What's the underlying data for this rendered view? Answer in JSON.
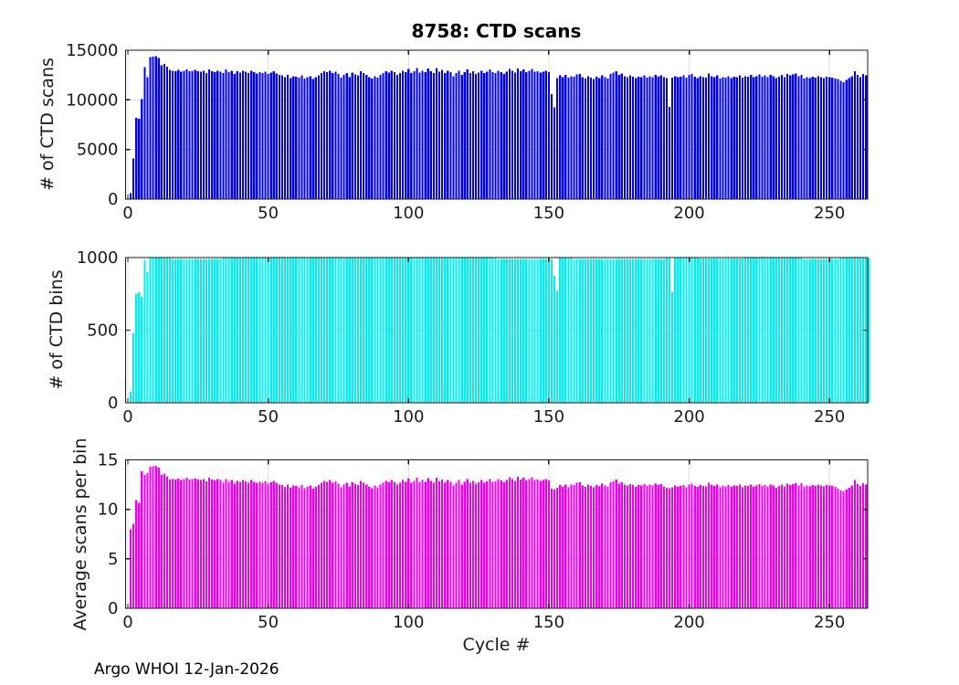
{
  "figure": {
    "title": "8758: CTD scans",
    "xlabel": "Cycle #",
    "footer": "Argo WHOI 12-Jan-2026"
  },
  "chart_data": [
    {
      "type": "bar",
      "name": "ctd-scans",
      "title": "8758: CTD scans",
      "ylabel": "# of CTD scans",
      "color": "#0000ee",
      "ylim": [
        0,
        15000
      ],
      "yticks": [
        0,
        5000,
        10000,
        15000
      ],
      "xticks": [
        0,
        50,
        100,
        150,
        200,
        250
      ],
      "xlim": [
        -0.8,
        263.6
      ],
      "x_start": 1,
      "grid": true,
      "values": [
        600,
        4100,
        8200,
        8100,
        10100,
        13300,
        12300,
        14300,
        14350,
        14400,
        14200,
        13500,
        13600,
        13350,
        13000,
        12950,
        12900,
        13000,
        12850,
        12950,
        13050,
        12900,
        12950,
        13000,
        12900,
        12850,
        12950,
        12700,
        13050,
        12900,
        12800,
        12950,
        12850,
        12700,
        13050,
        12800,
        12950,
        12600,
        12900,
        12750,
        12950,
        12850,
        12700,
        12950,
        12800,
        12650,
        12800,
        12700,
        12850,
        12600,
        12750,
        12900,
        12650,
        12500,
        12450,
        12300,
        12500,
        12200,
        12400,
        12350,
        12250,
        12450,
        12150,
        12300,
        12400,
        12100,
        12300,
        12450,
        12700,
        12900,
        12800,
        12950,
        12700,
        12850,
        12600,
        12250,
        12500,
        12700,
        12300,
        12750,
        12550,
        12450,
        12900,
        12700,
        12500,
        12300,
        12150,
        12400,
        12250,
        12500,
        12700,
        12900,
        12750,
        12950,
        12800,
        12500,
        12700,
        12950,
        12800,
        13100,
        12700,
        12900,
        13200,
        12750,
        12950,
        12800,
        13150,
        12900,
        12700,
        13200,
        12850,
        13000,
        12700,
        12950,
        12800,
        12400,
        12700,
        12950,
        12500,
        12800,
        13050,
        12700,
        12900,
        12600,
        12750,
        12950,
        12700,
        12850,
        13050,
        12800,
        12700,
        12950,
        12800,
        12600,
        12850,
        13100,
        12950,
        12750,
        13150,
        12900,
        13050,
        12800,
        12950,
        13100,
        12850,
        12900,
        12750,
        12850,
        12950,
        12800,
        10600,
        9250,
        12200,
        12450,
        12300,
        12500,
        12250,
        12400,
        12350,
        12550,
        12600,
        12300,
        12150,
        12400,
        12250,
        12100,
        12350,
        12200,
        12450,
        12300,
        12150,
        12600,
        12750,
        12900,
        12500,
        12650,
        12400,
        12300,
        12450,
        12350,
        12200,
        12350,
        12300,
        12450,
        12250,
        12400,
        12300,
        12500,
        12350,
        12450,
        12300,
        12200,
        9300,
        12250,
        12400,
        12300,
        12350,
        12450,
        12250,
        12500,
        12600,
        12350,
        12200,
        12400,
        12300,
        12250,
        12650,
        12400,
        12300,
        12450,
        12150,
        12300,
        12250,
        12400,
        12200,
        12350,
        12300,
        12450,
        12250,
        12400,
        12350,
        12500,
        12300,
        12400,
        12550,
        12350,
        12450,
        12300,
        12500,
        12400,
        12200,
        12350,
        12500,
        12300,
        12600,
        12450,
        12550,
        12650,
        12400,
        12500,
        12150,
        12300,
        12200,
        12350,
        12250,
        12400,
        12300,
        12200,
        12350,
        12300,
        12250,
        12150,
        12100,
        11900,
        11800,
        12000,
        12200,
        12400,
        12900,
        12500,
        12300,
        12600,
        12450
      ]
    },
    {
      "type": "bar",
      "name": "ctd-bins",
      "ylabel": "# of CTD bins",
      "color": "#00eeee",
      "ylim": [
        0,
        1000
      ],
      "yticks": [
        0,
        500,
        1000
      ],
      "xticks": [
        0,
        50,
        100,
        150,
        200,
        250
      ],
      "xlim": [
        -0.8,
        263.6
      ],
      "x_start": 1,
      "grid": true,
      "values": [
        75,
        480,
        750,
        760,
        730,
        985,
        900,
        1000,
        1000,
        1000,
        1000,
        1000,
        1000,
        1000,
        1000,
        990,
        990,
        990,
        990,
        990,
        990,
        990,
        990,
        990,
        990,
        990,
        990,
        990,
        990,
        990,
        990,
        990,
        990,
        1000,
        1000,
        1000,
        1000,
        1000,
        1000,
        1000,
        1000,
        1000,
        1000,
        1000,
        1000,
        1000,
        1000,
        1000,
        1000,
        1000,
        1000,
        1000,
        1000,
        1000,
        1000,
        1000,
        1000,
        1000,
        1000,
        1000,
        1000,
        1000,
        1000,
        1000,
        1000,
        1000,
        1000,
        1000,
        1000,
        1000,
        1000,
        1000,
        1000,
        1000,
        1000,
        1000,
        1000,
        1000,
        1000,
        1000,
        1000,
        1000,
        1000,
        1000,
        1000,
        1000,
        1000,
        1000,
        1000,
        1000,
        1000,
        1000,
        1000,
        1000,
        1000,
        1000,
        1000,
        1000,
        1000,
        1000,
        1000,
        1000,
        1000,
        1000,
        1000,
        1000,
        1000,
        1000,
        1000,
        1000,
        1000,
        1000,
        1000,
        1000,
        1000,
        1000,
        1000,
        1000,
        1000,
        1000,
        1000,
        1000,
        1000,
        1000,
        1000,
        1000,
        1000,
        1000,
        1000,
        1000,
        1000,
        990,
        990,
        990,
        990,
        990,
        990,
        990,
        990,
        990,
        990,
        990,
        990,
        990,
        990,
        990,
        990,
        990,
        990,
        990,
        990,
        875,
        770,
        1000,
        1000,
        1000,
        1000,
        1000,
        990,
        990,
        990,
        990,
        990,
        990,
        990,
        990,
        990,
        990,
        990,
        990,
        990,
        990,
        990,
        992,
        992,
        992,
        992,
        992,
        992,
        992,
        992,
        992,
        992,
        992,
        992,
        992,
        992,
        992,
        992,
        992,
        992,
        1000,
        1000,
        765,
        1000,
        1000,
        1000,
        1000,
        1000,
        1000,
        1000,
        1000,
        1000,
        995,
        995,
        995,
        995,
        995,
        995,
        995,
        995,
        995,
        995,
        995,
        995,
        995,
        995,
        995,
        995,
        1000,
        1000,
        1000,
        1000,
        1000,
        1000,
        1000,
        1000,
        1000,
        1000,
        1000,
        1000,
        1000,
        1000,
        1000,
        1000,
        1000,
        1000,
        1000,
        1000,
        1000,
        990,
        990,
        990,
        990,
        990,
        990,
        990,
        990,
        990,
        990,
        990,
        990,
        990,
        1000,
        1000,
        1000,
        1000,
        1000,
        1000,
        996,
        996,
        996,
        996,
        996
      ]
    },
    {
      "type": "bar",
      "name": "avg-scans-per-bin",
      "ylabel": "Average scans per bin",
      "xlabel": "Cycle #",
      "color": "#ee00ee",
      "ylim": [
        0,
        15
      ],
      "yticks": [
        0,
        5,
        10,
        15
      ],
      "xticks": [
        0,
        50,
        100,
        150,
        200,
        250
      ],
      "xlim": [
        -0.8,
        263.6
      ],
      "x_start": 1,
      "grid": true,
      "values": [
        8.0,
        8.54,
        10.93,
        10.66,
        13.84,
        13.5,
        13.67,
        14.3,
        14.35,
        14.4,
        14.2,
        13.5,
        13.6,
        13.35,
        13.0,
        13.08,
        13.03,
        13.13,
        12.98,
        13.08,
        13.18,
        13.03,
        13.08,
        13.13,
        13.03,
        12.98,
        13.08,
        12.83,
        13.18,
        13.03,
        12.93,
        13.08,
        12.98,
        12.7,
        13.05,
        12.8,
        12.95,
        12.6,
        12.9,
        12.75,
        12.95,
        12.85,
        12.7,
        12.95,
        12.8,
        12.65,
        12.8,
        12.7,
        12.85,
        12.6,
        12.75,
        12.9,
        12.65,
        12.5,
        12.45,
        12.3,
        12.5,
        12.2,
        12.4,
        12.35,
        12.25,
        12.45,
        12.15,
        12.3,
        12.4,
        12.1,
        12.3,
        12.45,
        12.7,
        12.9,
        12.8,
        12.95,
        12.7,
        12.85,
        12.6,
        12.25,
        12.5,
        12.7,
        12.3,
        12.75,
        12.55,
        12.45,
        12.9,
        12.7,
        12.5,
        12.3,
        12.15,
        12.4,
        12.25,
        12.5,
        12.7,
        12.9,
        12.75,
        12.95,
        12.8,
        12.5,
        12.7,
        12.95,
        12.8,
        13.1,
        12.7,
        12.9,
        13.2,
        12.75,
        12.95,
        12.8,
        13.15,
        12.9,
        12.7,
        13.2,
        12.85,
        13.0,
        12.7,
        12.95,
        12.8,
        12.4,
        12.7,
        12.95,
        12.5,
        12.8,
        13.05,
        12.7,
        12.9,
        12.6,
        12.75,
        12.95,
        12.7,
        12.85,
        13.05,
        12.8,
        12.83,
        13.08,
        12.93,
        12.73,
        12.98,
        13.23,
        13.08,
        12.88,
        13.28,
        13.03,
        13.18,
        12.93,
        13.08,
        13.23,
        12.98,
        13.03,
        12.88,
        12.98,
        13.08,
        12.93,
        12.11,
        12.01,
        12.2,
        12.45,
        12.3,
        12.5,
        12.25,
        12.53,
        12.47,
        12.68,
        12.73,
        12.42,
        12.27,
        12.53,
        12.37,
        12.22,
        12.47,
        12.32,
        12.58,
        12.42,
        12.27,
        12.73,
        12.85,
        13.0,
        12.6,
        12.75,
        12.5,
        12.4,
        12.55,
        12.45,
        12.3,
        12.45,
        12.4,
        12.55,
        12.35,
        12.5,
        12.4,
        12.6,
        12.45,
        12.55,
        12.3,
        12.2,
        12.16,
        12.25,
        12.4,
        12.3,
        12.35,
        12.45,
        12.25,
        12.5,
        12.6,
        12.35,
        12.26,
        12.46,
        12.36,
        12.31,
        12.71,
        12.46,
        12.36,
        12.51,
        12.21,
        12.36,
        12.31,
        12.46,
        12.26,
        12.41,
        12.36,
        12.51,
        12.25,
        12.4,
        12.35,
        12.5,
        12.3,
        12.4,
        12.55,
        12.35,
        12.45,
        12.3,
        12.5,
        12.4,
        12.2,
        12.35,
        12.5,
        12.3,
        12.6,
        12.45,
        12.55,
        12.65,
        12.4,
        12.63,
        12.27,
        12.42,
        12.32,
        12.47,
        12.37,
        12.53,
        12.42,
        12.32,
        12.47,
        12.42,
        12.37,
        12.27,
        12.1,
        11.9,
        11.8,
        12.0,
        12.2,
        12.4,
        12.95,
        12.55,
        12.35,
        12.65,
        12.5
      ]
    }
  ]
}
